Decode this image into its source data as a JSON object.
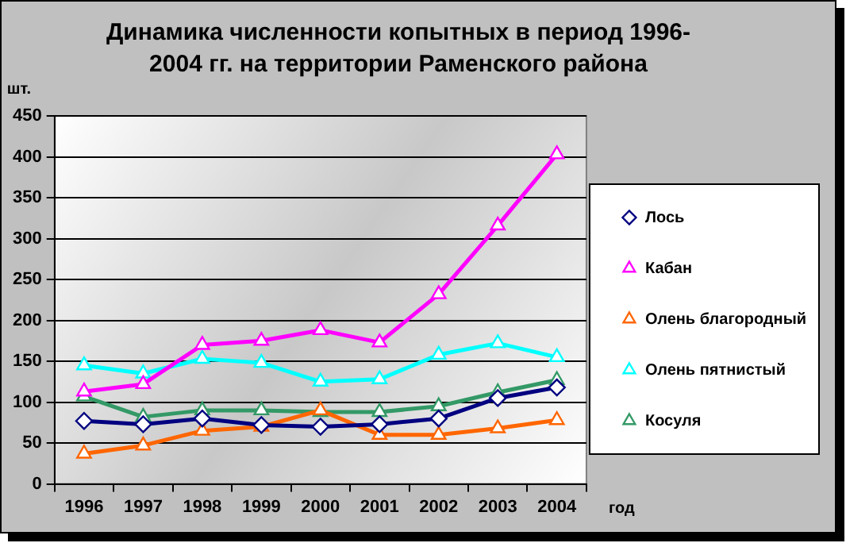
{
  "chart_data": {
    "type": "line",
    "title": "Динамика численности копытных  в период 1996-2004 гг. на территории Раменского района",
    "ylabel": "шт.",
    "xlabel": "год",
    "categories": [
      "1996",
      "1997",
      "1998",
      "1999",
      "2000",
      "2001",
      "2002",
      "2003",
      "2004"
    ],
    "series": [
      {
        "name": "Лось",
        "color": "#000080",
        "marker": "diamond",
        "values": [
          77,
          73,
          80,
          72,
          70,
          73,
          80,
          105,
          118
        ]
      },
      {
        "name": "Кабан",
        "color": "#ff00ff",
        "marker": "triangle",
        "values": [
          113,
          122,
          170,
          175,
          188,
          173,
          232,
          316,
          403
        ]
      },
      {
        "name": "Олень благородный",
        "color": "#ff6600",
        "marker": "triangle",
        "values": [
          37,
          47,
          65,
          70,
          90,
          60,
          60,
          68,
          78
        ]
      },
      {
        "name": "Олень пятнистый",
        "color": "#00ffff",
        "marker": "triangle",
        "values": [
          145,
          135,
          153,
          148,
          125,
          128,
          158,
          172,
          155
        ]
      },
      {
        "name": "Косуля",
        "color": "#339966",
        "marker": "triangle",
        "values": [
          107,
          82,
          90,
          90,
          88,
          88,
          95,
          112,
          127
        ]
      }
    ],
    "ylim": [
      0,
      450
    ],
    "yticks": [
      0,
      50,
      100,
      150,
      200,
      250,
      300,
      350,
      400,
      450
    ],
    "grid": "y",
    "legend": "right"
  }
}
